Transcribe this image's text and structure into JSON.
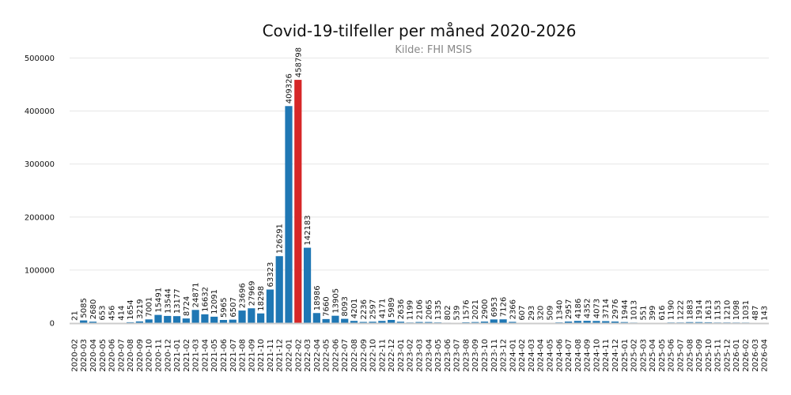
{
  "chart_data": {
    "type": "bar",
    "title": "Covid-19-tilfeller per måned 2020-2026",
    "subtitle": "Kilde: FHI MSIS",
    "xlabel": "",
    "ylabel": "",
    "ylim": [
      0,
      520000
    ],
    "yticks": [
      0,
      100000,
      200000,
      300000,
      400000,
      500000
    ],
    "grid": true,
    "legend": "none",
    "colors": {
      "bar": "#1f77b4",
      "highlight": "#d62728",
      "grid": "#e6e6e6",
      "baseline": "#cccccc"
    },
    "highlight_categories": [
      "2022-02"
    ],
    "categories": [
      "2020-02",
      "2020-03",
      "2020-04",
      "2020-05",
      "2020-06",
      "2020-07",
      "2020-08",
      "2020-09",
      "2020-10",
      "2020-11",
      "2020-12",
      "2021-01",
      "2021-02",
      "2021-03",
      "2021-04",
      "2021-05",
      "2021-06",
      "2021-07",
      "2021-08",
      "2021-09",
      "2021-10",
      "2021-11",
      "2021-12",
      "2022-01",
      "2022-02",
      "2022-03",
      "2022-04",
      "2022-05",
      "2022-06",
      "2022-07",
      "2022-08",
      "2022-09",
      "2022-10",
      "2022-11",
      "2022-12",
      "2023-01",
      "2023-02",
      "2023-03",
      "2023-04",
      "2023-05",
      "2023-06",
      "2023-07",
      "2023-08",
      "2023-09",
      "2023-10",
      "2023-11",
      "2023-12",
      "2024-01",
      "2024-02",
      "2024-03",
      "2024-04",
      "2024-05",
      "2024-06",
      "2024-07",
      "2024-08",
      "2024-09",
      "2024-10",
      "2024-11",
      "2024-12",
      "2025-01",
      "2025-02",
      "2025-03",
      "2025-04",
      "2025-05",
      "2025-06",
      "2025-07",
      "2025-08",
      "2025-09",
      "2025-10",
      "2025-11",
      "2025-12",
      "2026-01",
      "2026-02",
      "2026-03",
      "2026-04"
    ],
    "values": [
      21,
      5085,
      2680,
      653,
      456,
      414,
      1654,
      3219,
      7001,
      15491,
      13544,
      13177,
      8724,
      24871,
      16632,
      12091,
      5965,
      6507,
      23696,
      27969,
      18298,
      63323,
      126291,
      409326,
      458798,
      142183,
      18986,
      7660,
      13905,
      8093,
      4201,
      2236,
      2597,
      4171,
      5989,
      2636,
      1199,
      2106,
      2065,
      1335,
      802,
      539,
      1576,
      2021,
      2900,
      6953,
      7126,
      2366,
      607,
      293,
      320,
      509,
      1340,
      2957,
      4186,
      4352,
      4073,
      3714,
      2976,
      1944,
      1013,
      551,
      399,
      616,
      1190,
      1222,
      1883,
      1914,
      1613,
      1153,
      1210,
      1098,
      1031,
      487,
      143
    ]
  }
}
